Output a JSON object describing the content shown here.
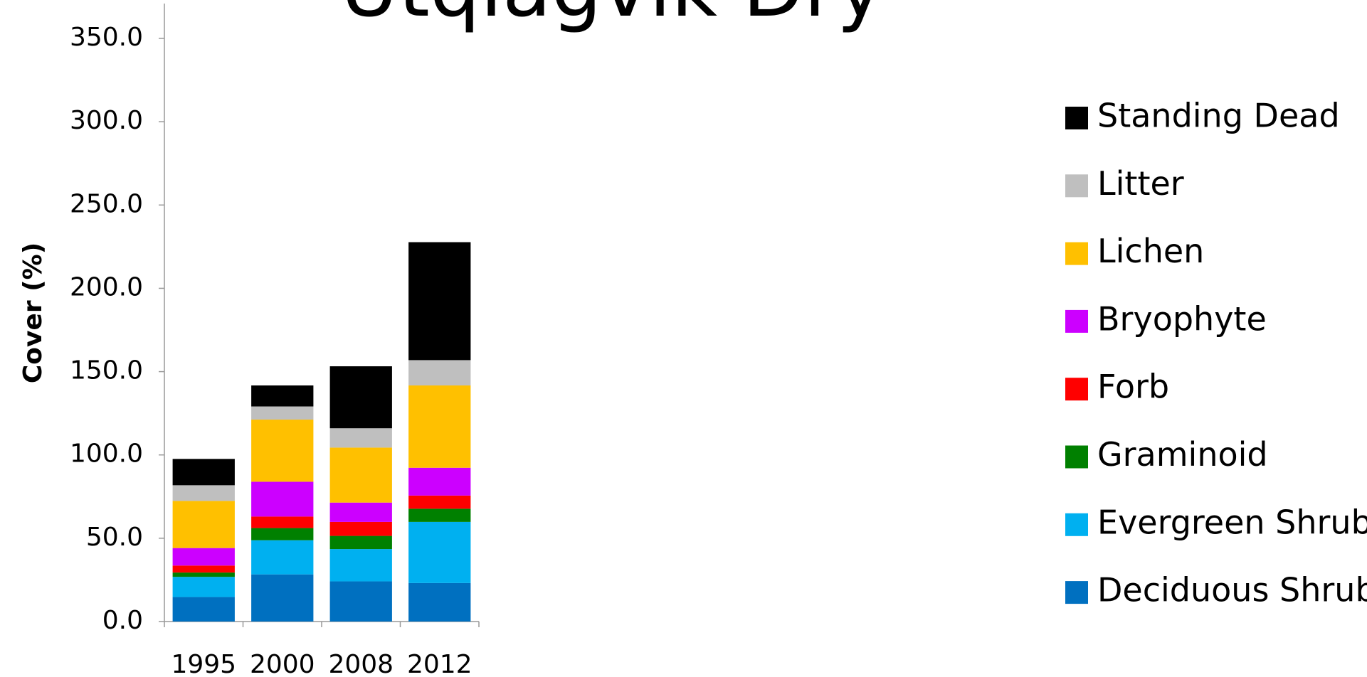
{
  "chart_data": {
    "type": "stacked_bar",
    "title": "Utqiagvik Dry",
    "y_label": "Cover (%)",
    "categories": [
      "1995",
      "2000",
      "2008",
      "2012"
    ],
    "series": [
      {
        "name": "Deciduous Shrub",
        "color": "#0070c0",
        "values": [
          14.7,
          28.3,
          24.1,
          23.1
        ]
      },
      {
        "name": "Evergreen Shrub",
        "color": "#00b0f0",
        "values": [
          12.1,
          20.5,
          19.4,
          36.7
        ]
      },
      {
        "name": "Graminoid",
        "color": "#008000",
        "values": [
          2.6,
          7.3,
          7.9,
          7.9
        ]
      },
      {
        "name": "Forb",
        "color": "#ff0000",
        "values": [
          4.2,
          6.9,
          8.4,
          7.9
        ]
      },
      {
        "name": "Bryophyte",
        "color": "#cc00ff",
        "values": [
          10.5,
          20.9,
          11.6,
          16.7
        ]
      },
      {
        "name": "Lichen",
        "color": "#ffc000",
        "values": [
          28.3,
          37.3,
          33.0,
          49.4
        ]
      },
      {
        "name": "Litter",
        "color": "#bfbfbf",
        "values": [
          9.4,
          7.9,
          11.6,
          15.2
        ]
      },
      {
        "name": "Standing Dead",
        "color": "#000000",
        "values": [
          15.8,
          12.6,
          37.2,
          70.8
        ]
      }
    ],
    "ylim": [
      0,
      350
    ],
    "yticks": [
      {
        "value": 0,
        "label": "0.0"
      },
      {
        "value": 50,
        "label": "50.0"
      },
      {
        "value": 100,
        "label": "100.0"
      },
      {
        "value": 150,
        "label": "150.0"
      },
      {
        "value": 200,
        "label": "200.0"
      },
      {
        "value": 250,
        "label": "250.0"
      },
      {
        "value": 300,
        "label": "300.0"
      },
      {
        "value": 350,
        "label": "350.0"
      }
    ],
    "grid": false,
    "legend": "right"
  }
}
